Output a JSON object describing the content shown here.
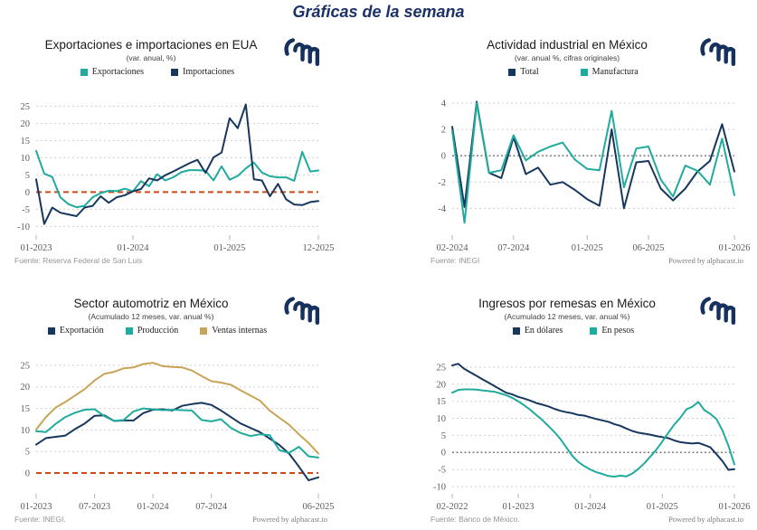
{
  "page": {
    "title": "Gráficas de la semana"
  },
  "colors": {
    "navy": "#17375e",
    "teal": "#1fab9e",
    "gold": "#c9a456",
    "zero_red": "#cc4a17",
    "zero_gray": "#6f6f6f",
    "grid": "#cfcfcf",
    "tick_text": "#5c5c5c",
    "title_blue": "#1b3168"
  },
  "chart_data": [
    {
      "type": "line",
      "title": "Exportaciones e importaciones en EUA",
      "subtitle": "(var. anual, %)",
      "x_unit": "month (MM-YYYY)",
      "n_points": 36,
      "xticks": [
        {
          "label": "01-2023",
          "index": 0
        },
        {
          "label": "01-2024",
          "index": 12
        },
        {
          "label": "01-2025",
          "index": 24
        },
        {
          "label": "12-2025",
          "index": 35
        }
      ],
      "yticks": [
        25,
        20,
        15,
        10,
        5,
        0,
        -5,
        -10
      ],
      "ylim": [
        -12,
        28
      ],
      "zero_line": "red_dashed",
      "series": [
        {
          "name": "Exportaciones",
          "color": "teal",
          "values": [
            12.0,
            5.4,
            4.4,
            -1.5,
            -3.5,
            -4.4,
            -4.0,
            -1.5,
            -0.3,
            0.4,
            0.3,
            1.0,
            0.2,
            3.2,
            1.7,
            5.2,
            3.4,
            4.3,
            5.8,
            6.4,
            6.4,
            6.2,
            3.4,
            7.5,
            3.6,
            4.7,
            6.9,
            8.6,
            5.7,
            4.6,
            4.3,
            4.3,
            3.3,
            11.7,
            6.0,
            6.3
          ]
        },
        {
          "name": "Importaciones",
          "color": "navy",
          "values": [
            3.7,
            -9.3,
            -4.5,
            -6.0,
            -6.5,
            -7.0,
            -4.5,
            -4.0,
            -1.2,
            -3.1,
            -1.5,
            -0.9,
            0.2,
            0.9,
            4.0,
            3.4,
            4.9,
            6.0,
            7.2,
            8.4,
            9.4,
            5.6,
            10.1,
            11.5,
            21.5,
            18.6,
            25.5,
            3.7,
            3.4,
            -1.2,
            2.4,
            -2.1,
            -3.6,
            -3.8,
            -2.9,
            -2.6
          ]
        }
      ],
      "source": "Fuente: Reserva Federal de San Luis",
      "powered_by": ""
    },
    {
      "type": "line",
      "title": "Actividad industrial en México",
      "subtitle": "(var. anual %, cifras originales)",
      "x_unit": "month (MM-YYYY)",
      "n_points": 24,
      "xticks": [
        {
          "label": "02-2024",
          "index": 0
        },
        {
          "label": "07-2024",
          "index": 5
        },
        {
          "label": "01-2025",
          "index": 11
        },
        {
          "label": "06-2025",
          "index": 16
        },
        {
          "label": "01-2026",
          "index": 23
        }
      ],
      "yticks": [
        4,
        2,
        0,
        -2,
        -4
      ],
      "ylim": [
        -5.9,
        4.55
      ],
      "zero_line": "gray_dotted",
      "series": [
        {
          "name": "Total",
          "color": "navy",
          "values": [
            2.2,
            -3.9,
            4.1,
            -1.3,
            -1.7,
            1.4,
            -1.4,
            -0.9,
            -2.2,
            -2.0,
            -2.6,
            -3.3,
            -3.8,
            2.0,
            -4.0,
            -0.5,
            -0.4,
            -2.5,
            -3.4,
            -2.5,
            -1.2,
            -0.4,
            2.4,
            -1.2
          ]
        },
        {
          "name": "Manufactura",
          "color": "teal",
          "values": [
            1.9,
            -5.1,
            4.0,
            -1.3,
            -1.1,
            1.55,
            -0.35,
            0.3,
            0.7,
            1.0,
            -0.3,
            -1.0,
            -1.1,
            3.4,
            -2.4,
            0.55,
            0.7,
            -1.8,
            -3.1,
            -0.75,
            -1.15,
            -2.2,
            1.3,
            -3.0
          ]
        }
      ],
      "source": "Fuente: INEGI",
      "powered_by": "Powered by alphacast.io"
    },
    {
      "type": "line",
      "title": "Sector automotriz en México",
      "subtitle": "(Acumulado 12 meses, var. anual %)",
      "x_unit": "month (MM-YYYY)",
      "n_points": 30,
      "xticks": [
        {
          "label": "01-2023",
          "index": 0
        },
        {
          "label": "07-2023",
          "index": 6
        },
        {
          "label": "01-2024",
          "index": 12
        },
        {
          "label": "07-2024",
          "index": 18
        },
        {
          "label": "06-2025",
          "index": 29
        }
      ],
      "yticks": [
        25,
        20,
        15,
        10,
        5,
        0
      ],
      "ylim": [
        -4.4,
        27.5
      ],
      "zero_line": "red_dashed",
      "series": [
        {
          "name": "Exportación",
          "color": "navy",
          "values": [
            6.6,
            8.1,
            8.4,
            8.7,
            10.2,
            11.5,
            13.3,
            13.4,
            12.1,
            12.2,
            12.2,
            13.9,
            14.7,
            14.8,
            14.5,
            15.6,
            16.0,
            16.3,
            15.8,
            14.5,
            13.0,
            11.5,
            10.5,
            9.5,
            8.0,
            6.5,
            4.5,
            1.5,
            -1.7,
            -1.0
          ]
        },
        {
          "name": "Producción",
          "color": "teal",
          "values": [
            9.7,
            9.5,
            11.4,
            13.0,
            14.0,
            14.7,
            14.8,
            13.2,
            12.1,
            12.3,
            14.3,
            15.0,
            14.8,
            14.6,
            14.7,
            14.6,
            14.5,
            12.3,
            12.0,
            12.5,
            10.5,
            9.3,
            8.6,
            9.0,
            8.8,
            5.3,
            4.7,
            6.1,
            3.9,
            3.6
          ]
        },
        {
          "name": "Ventas internas",
          "color": "gold",
          "values": [
            10.1,
            13.0,
            15.2,
            16.5,
            18.0,
            19.5,
            21.5,
            23.0,
            23.5,
            24.3,
            24.5,
            25.3,
            25.6,
            24.8,
            24.6,
            24.5,
            23.8,
            22.5,
            21.3,
            21.0,
            20.5,
            19.2,
            18.0,
            16.8,
            14.5,
            12.8,
            11.2,
            9.0,
            7.0,
            4.5
          ]
        }
      ],
      "source": "Fuente: INEGI.",
      "powered_by": "Powered by alphacast.io"
    },
    {
      "type": "line",
      "title": "Ingresos por remesas en México",
      "subtitle": "(Acumulado 12 meses, var. anual %)",
      "x_unit": "month (MM-YYYY)",
      "n_points": 48,
      "xticks": [
        {
          "label": "02-2022",
          "index": 0
        },
        {
          "label": "01-2023",
          "index": 11
        },
        {
          "label": "01-2024",
          "index": 23
        },
        {
          "label": "01-2025",
          "index": 35
        },
        {
          "label": "01-2026",
          "index": 47
        }
      ],
      "yticks": [
        25,
        20,
        15,
        10,
        5,
        0,
        -5,
        -10
      ],
      "ylim": [
        -11.6,
        28.7
      ],
      "zero_line": "gray_dotted",
      "series": [
        {
          "name": "En dólares",
          "color": "navy",
          "values": [
            25.5,
            26.0,
            24.5,
            23.5,
            22.5,
            21.5,
            20.5,
            19.5,
            18.5,
            17.5,
            17.0,
            16.3,
            15.8,
            15.2,
            14.5,
            14.0,
            13.5,
            12.8,
            12.2,
            11.8,
            11.5,
            11.0,
            10.8,
            10.3,
            9.8,
            9.4,
            9.0,
            8.3,
            7.8,
            7.0,
            6.3,
            5.8,
            5.5,
            5.2,
            4.8,
            4.5,
            4.2,
            3.5,
            3.0,
            2.8,
            2.6,
            2.8,
            2.2,
            1.5,
            -0.5,
            -2.5,
            -5.1,
            -4.9
          ]
        },
        {
          "name": "En pesos",
          "color": "teal",
          "values": [
            17.5,
            18.3,
            18.5,
            18.5,
            18.4,
            18.2,
            18.0,
            17.8,
            17.3,
            16.8,
            16.0,
            15.0,
            13.8,
            12.5,
            11.0,
            9.5,
            7.8,
            6.0,
            4.0,
            1.5,
            -1.0,
            -2.8,
            -4.0,
            -5.0,
            -5.8,
            -6.3,
            -6.9,
            -7.1,
            -6.8,
            -7.0,
            -6.2,
            -4.8,
            -3.2,
            -1.2,
            0.8,
            3.2,
            5.8,
            8.2,
            10.2,
            12.6,
            13.4,
            14.8,
            12.4,
            11.3,
            9.8,
            6.5,
            2.0,
            -3.5
          ]
        }
      ],
      "source": "Fuente: Banco de México.",
      "powered_by": "Powered by alphacast.io"
    }
  ]
}
